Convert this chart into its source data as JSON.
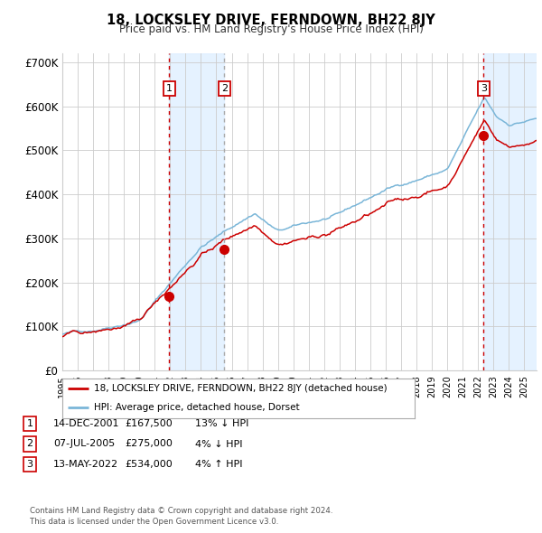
{
  "title": "18, LOCKSLEY DRIVE, FERNDOWN, BH22 8JY",
  "subtitle": "Price paid vs. HM Land Registry's House Price Index (HPI)",
  "ylabel_ticks": [
    "£0",
    "£100K",
    "£200K",
    "£300K",
    "£400K",
    "£500K",
    "£600K",
    "£700K"
  ],
  "ylim": [
    0,
    720000
  ],
  "xlim_start": 1995.0,
  "xlim_end": 2025.8,
  "sale_dates": [
    2001.95,
    2005.52,
    2022.36
  ],
  "sale_prices": [
    167500,
    275000,
    534000
  ],
  "sale_labels": [
    "1",
    "2",
    "3"
  ],
  "legend_line1": "18, LOCKSLEY DRIVE, FERNDOWN, BH22 8JY (detached house)",
  "legend_line2": "HPI: Average price, detached house, Dorset",
  "table_rows": [
    [
      "1",
      "14-DEC-2001",
      "£167,500",
      "13% ↓ HPI"
    ],
    [
      "2",
      "07-JUL-2005",
      "£275,000",
      "4% ↓ HPI"
    ],
    [
      "3",
      "13-MAY-2022",
      "£534,000",
      "4% ↑ HPI"
    ]
  ],
  "footnote1": "Contains HM Land Registry data © Crown copyright and database right 2024.",
  "footnote2": "This data is licensed under the Open Government Licence v3.0.",
  "hpi_color": "#7ab6d8",
  "sale_color": "#cc0000",
  "bg_color": "#ffffff",
  "plot_bg_color": "#ffffff",
  "grid_color": "#cccccc",
  "shade_color": "#ddeeff",
  "vline_sale1_color": "#cc0000",
  "vline_sale2_color": "#aaaaaa",
  "vline_sale3_color": "#cc0000"
}
